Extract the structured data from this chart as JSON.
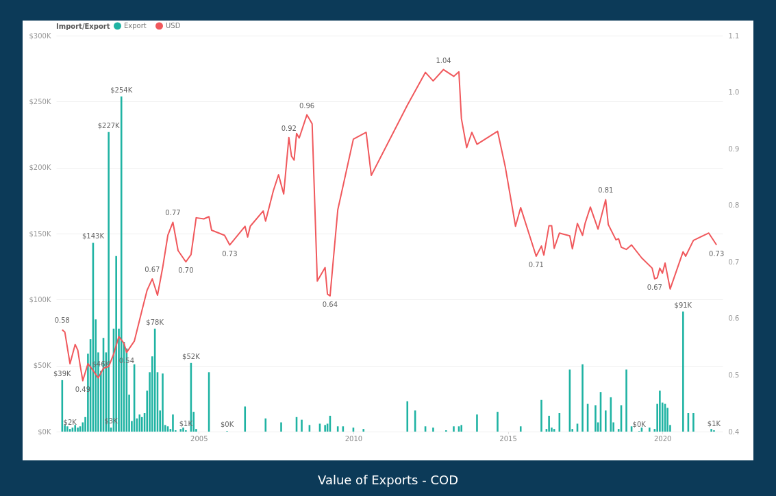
{
  "chart_data": {
    "type": "bar",
    "title": "Value of Exports - COD",
    "legend_title": "Import/Export",
    "legend": "top left",
    "grid": "y",
    "xlim": [
      "2000-07",
      "2021-11"
    ],
    "xticks": [
      {
        "value": "2005-01-01",
        "label": "2005"
      },
      {
        "value": "2010-01-01",
        "label": "2010"
      },
      {
        "value": "2015-01-01",
        "label": "2015"
      },
      {
        "value": "2020-01-01",
        "label": "2020"
      }
    ],
    "ylim": [
      0,
      300
    ],
    "yticks": [
      {
        "value": 0,
        "label": "$0K"
      },
      {
        "value": 50,
        "label": "$50K"
      },
      {
        "value": 100,
        "label": "$100K"
      },
      {
        "value": 150,
        "label": "$150K"
      },
      {
        "value": 200,
        "label": "$200K"
      },
      {
        "value": 250,
        "label": "$250K"
      },
      {
        "value": 300,
        "label": "$300K"
      }
    ],
    "y2lim": [
      0.4,
      1.1
    ],
    "y2ticks": [
      {
        "value": 0.4,
        "label": "0.4"
      },
      {
        "value": 0.5,
        "label": "0.5"
      },
      {
        "value": 0.6,
        "label": "0.6"
      },
      {
        "value": 0.7,
        "label": "0.7"
      },
      {
        "value": 0.8,
        "label": "0.8"
      },
      {
        "value": 0.9,
        "label": "0.9"
      },
      {
        "value": 1,
        "label": "1.0"
      },
      {
        "value": 1.1,
        "label": "1.1"
      }
    ],
    "series": [
      {
        "name": "Export",
        "color": "#1fb3a3",
        "x": [
          "2000-08",
          "2000-09",
          "2000-10",
          "2000-11",
          "2000-12",
          "2001-01",
          "2001-02",
          "2001-03",
          "2001-04",
          "2001-05",
          "2001-06",
          "2001-07",
          "2001-08",
          "2001-09",
          "2001-10",
          "2001-11",
          "2001-12",
          "2002-01",
          "2002-02",
          "2002-03",
          "2002-04",
          "2002-05",
          "2002-06",
          "2002-07",
          "2002-08",
          "2002-09",
          "2002-10",
          "2002-11",
          "2002-12",
          "2003-01",
          "2003-02",
          "2003-03",
          "2003-04",
          "2003-05",
          "2003-06",
          "2003-07",
          "2003-08",
          "2003-09",
          "2003-10",
          "2003-11",
          "2003-12",
          "2004-01",
          "2004-02",
          "2004-03",
          "2004-04",
          "2004-06",
          "2004-07",
          "2004-08",
          "2004-10",
          "2004-11",
          "2004-12",
          "2005-05",
          "2005-12",
          "2006-07",
          "2007-03",
          "2007-09",
          "2008-03",
          "2008-05",
          "2008-08",
          "2008-12",
          "2009-02",
          "2009-03",
          "2009-04",
          "2009-07",
          "2009-09",
          "2010-01",
          "2010-05",
          "2011-10",
          "2012-01",
          "2012-05",
          "2012-08",
          "2013-01",
          "2013-04",
          "2013-06",
          "2013-07",
          "2014-01",
          "2014-09",
          "2015-06",
          "2016-02",
          "2016-04",
          "2016-05",
          "2016-06",
          "2016-07",
          "2016-09",
          "2017-01",
          "2017-02",
          "2017-04",
          "2017-06",
          "2017-08",
          "2017-11",
          "2017-12",
          "2018-01",
          "2018-03",
          "2018-05",
          "2018-06",
          "2018-08",
          "2018-09",
          "2018-11",
          "2019-01",
          "2019-04",
          "2019-05",
          "2019-08",
          "2019-10",
          "2019-11",
          "2019-12",
          "2020-01",
          "2020-02",
          "2020-03",
          "2020-04",
          "2020-09",
          "2020-11",
          "2021-01",
          "2021-08",
          "2021-09"
        ],
        "values": [
          39,
          5,
          4,
          2,
          3,
          5,
          3,
          4,
          7,
          11,
          59,
          70,
          143,
          85,
          60,
          46,
          71,
          60,
          227,
          3,
          78,
          133,
          78,
          254,
          68,
          63,
          28,
          8,
          51,
          10,
          13,
          11,
          14,
          31,
          45,
          57,
          78,
          45,
          16,
          44,
          5,
          4,
          2,
          13,
          1,
          2,
          3,
          1,
          52,
          15,
          2,
          45,
          0.4,
          19,
          10,
          7,
          11,
          9,
          5,
          6,
          5,
          6,
          12,
          4,
          4,
          3,
          2,
          23,
          16,
          4,
          3,
          1,
          4,
          4,
          5,
          13,
          15,
          4,
          24,
          2,
          12,
          3,
          2,
          14,
          47,
          2,
          6,
          51,
          21,
          20,
          7,
          30,
          16,
          26,
          7,
          2,
          20,
          47,
          4,
          0.4,
          3,
          3,
          2,
          21,
          31,
          22,
          21,
          18,
          5,
          91,
          14,
          14,
          2,
          1
        ],
        "value_labels": [
          "$39K",
          null,
          null,
          "$2K",
          null,
          null,
          null,
          null,
          null,
          null,
          null,
          null,
          "$143K",
          null,
          null,
          "$46K",
          null,
          null,
          "$227K",
          "$3K",
          null,
          null,
          null,
          "$254K",
          null,
          null,
          null,
          null,
          null,
          null,
          null,
          null,
          null,
          null,
          null,
          null,
          "$78K",
          null,
          null,
          null,
          null,
          null,
          null,
          null,
          null,
          null,
          null,
          "$1K",
          "$52K",
          null,
          null,
          null,
          "$0K",
          null,
          null,
          null,
          null,
          null,
          null,
          null,
          null,
          null,
          null,
          null,
          null,
          null,
          null,
          null,
          null,
          null,
          null,
          null,
          null,
          null,
          null,
          null,
          null,
          null,
          null,
          null,
          null,
          null,
          null,
          null,
          null,
          null,
          null,
          null,
          null,
          null,
          null,
          null,
          null,
          null,
          null,
          null,
          null,
          null,
          null,
          "$0K",
          null,
          null,
          null,
          null,
          null,
          null,
          null,
          null,
          null,
          "$91K",
          null,
          null,
          null,
          "$1K"
        ]
      },
      {
        "name": "USD",
        "type": "line",
        "axis": "y2",
        "color": "#f0585c",
        "x": [
          "2000-08",
          "2000-09",
          "2000-11",
          "2001-01",
          "2001-02",
          "2001-03",
          "2001-04",
          "2001-06",
          "2001-08",
          "2001-10",
          "2001-12",
          "2002-02",
          "2002-04",
          "2002-06",
          "2002-08",
          "2002-09",
          "2002-12",
          "2003-03",
          "2003-05",
          "2003-07",
          "2003-09",
          "2003-11",
          "2004-01",
          "2004-03",
          "2004-05",
          "2004-08",
          "2004-10",
          "2004-12",
          "2005-03",
          "2005-05",
          "2005-06",
          "2005-11",
          "2006-01",
          "2006-07",
          "2006-08",
          "2006-09",
          "2007-02",
          "2007-03",
          "2007-06",
          "2007-08",
          "2007-10",
          "2007-12",
          "2008-01",
          "2008-02",
          "2008-03",
          "2008-04",
          "2008-07",
          "2008-09",
          "2008-11",
          "2009-02",
          "2009-03",
          "2009-04",
          "2009-07",
          "2010-01",
          "2010-06",
          "2010-08",
          "2011-10",
          "2012-05",
          "2012-08",
          "2012-12",
          "2013-04",
          "2013-06",
          "2013-07",
          "2013-09",
          "2013-11",
          "2014-01",
          "2014-09",
          "2014-12",
          "2015-04",
          "2015-06",
          "2015-12",
          "2016-02",
          "2016-03",
          "2016-05",
          "2016-06",
          "2016-07",
          "2016-09",
          "2017-01",
          "2017-02",
          "2017-04",
          "2017-06",
          "2017-07",
          "2017-09",
          "2017-10",
          "2017-12",
          "2018-03",
          "2018-04",
          "2018-07",
          "2018-08",
          "2018-09",
          "2018-11",
          "2019-01",
          "2019-05",
          "2019-09",
          "2019-10",
          "2019-11",
          "2019-12",
          "2020-01",
          "2020-02",
          "2020-04",
          "2020-09",
          "2020-10",
          "2021-01",
          "2021-07",
          "2021-10"
        ],
        "values": [
          0.58,
          0.576,
          0.52,
          0.554,
          0.544,
          0.517,
          0.49,
          0.52,
          0.508,
          0.495,
          0.512,
          0.515,
          0.537,
          0.568,
          0.556,
          0.54,
          0.56,
          0.614,
          0.65,
          0.67,
          0.641,
          0.69,
          0.747,
          0.77,
          0.72,
          0.7,
          0.713,
          0.778,
          0.776,
          0.78,
          0.756,
          0.747,
          0.73,
          0.763,
          0.744,
          0.763,
          0.79,
          0.772,
          0.826,
          0.854,
          0.82,
          0.92,
          0.887,
          0.88,
          0.927,
          0.919,
          0.96,
          0.944,
          0.666,
          0.69,
          0.643,
          0.64,
          0.792,
          0.917,
          0.929,
          0.853,
          0.977,
          1.035,
          1.02,
          1.04,
          1.028,
          1.036,
          0.953,
          0.902,
          0.929,
          0.908,
          0.931,
          0.868,
          0.763,
          0.796,
          0.71,
          0.728,
          0.712,
          0.764,
          0.764,
          0.724,
          0.751,
          0.746,
          0.723,
          0.768,
          0.747,
          0.768,
          0.797,
          0.784,
          0.758,
          0.81,
          0.766,
          0.739,
          0.741,
          0.726,
          0.722,
          0.73,
          0.707,
          0.689,
          0.67,
          0.672,
          0.689,
          0.68,
          0.698,
          0.652,
          0.718,
          0.71,
          0.738,
          0.751,
          0.73
        ],
        "value_labels": [
          "0.58",
          null,
          null,
          null,
          null,
          null,
          "0.49",
          null,
          null,
          null,
          null,
          null,
          null,
          null,
          null,
          "0.54",
          null,
          null,
          null,
          "0.67",
          null,
          null,
          null,
          "0.77",
          null,
          "0.70",
          null,
          null,
          null,
          null,
          null,
          null,
          "0.73",
          null,
          null,
          null,
          null,
          null,
          null,
          null,
          null,
          "0.92",
          null,
          null,
          null,
          null,
          "0.96",
          null,
          null,
          null,
          null,
          "0.64",
          null,
          null,
          null,
          null,
          null,
          null,
          null,
          "1.04",
          null,
          null,
          null,
          null,
          null,
          null,
          null,
          null,
          null,
          null,
          "0.71",
          null,
          null,
          null,
          null,
          null,
          null,
          null,
          null,
          null,
          null,
          null,
          null,
          null,
          null,
          "0.81",
          null,
          null,
          null,
          null,
          null,
          null,
          null,
          null,
          "0.67",
          null,
          null,
          null,
          null,
          null,
          null,
          null,
          null,
          null,
          "0.73"
        ]
      }
    ]
  }
}
